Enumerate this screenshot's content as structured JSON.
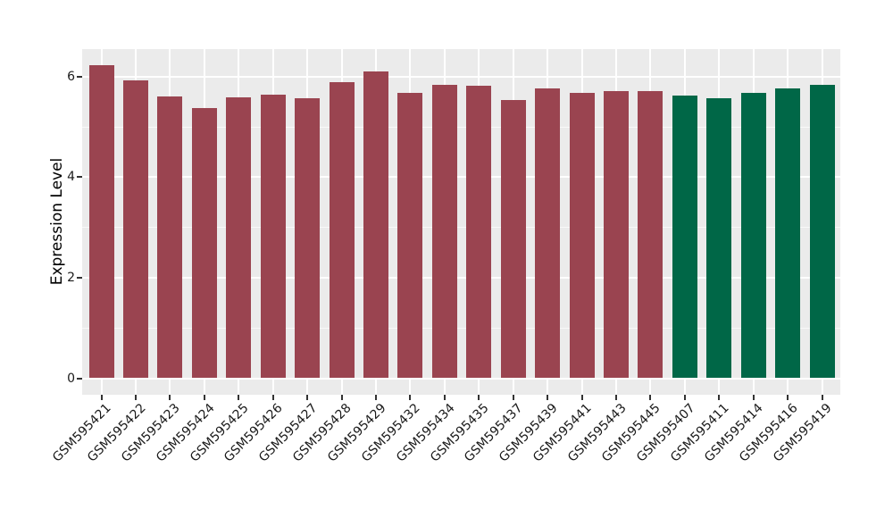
{
  "chart_data": {
    "type": "bar",
    "title": "",
    "xlabel": "",
    "ylabel": "Expression Level",
    "categories": [
      "GSM595421",
      "GSM595422",
      "GSM595423",
      "GSM595424",
      "GSM595425",
      "GSM595426",
      "GSM595427",
      "GSM595428",
      "GSM595429",
      "GSM595432",
      "GSM595434",
      "GSM595435",
      "GSM595437",
      "GSM595439",
      "GSM595441",
      "GSM595443",
      "GSM595445",
      "GSM595407",
      "GSM595411",
      "GSM595414",
      "GSM595416",
      "GSM595419"
    ],
    "values": [
      6.23,
      5.93,
      5.6,
      5.37,
      5.59,
      5.64,
      5.57,
      5.89,
      6.11,
      5.67,
      5.83,
      5.81,
      5.53,
      5.77,
      5.67,
      5.71,
      5.71,
      5.62,
      5.56,
      5.67,
      5.76,
      5.84
    ],
    "bar_colors": [
      "#9A4450",
      "#9A4450",
      "#9A4450",
      "#9A4450",
      "#9A4450",
      "#9A4450",
      "#9A4450",
      "#9A4450",
      "#9A4450",
      "#9A4450",
      "#9A4450",
      "#9A4450",
      "#9A4450",
      "#9A4450",
      "#9A4450",
      "#9A4450",
      "#9A4450",
      "#006747",
      "#006747",
      "#006747",
      "#006747",
      "#006747"
    ],
    "group_colors": {
      "maroon": "#9A4450",
      "green": "#006747"
    },
    "ylim": [
      -0.33,
      6.55
    ],
    "y_ticks": [
      0,
      2,
      4,
      6
    ],
    "y_tick_labels": [
      "0",
      "2",
      "4",
      "6"
    ],
    "y_minor_ticks": [
      1,
      3,
      5
    ],
    "grid": true,
    "legend": false,
    "panel_background": "#EBEBEB",
    "grid_color": "#FFFFFF",
    "x_label_rotation_deg": 45
  }
}
